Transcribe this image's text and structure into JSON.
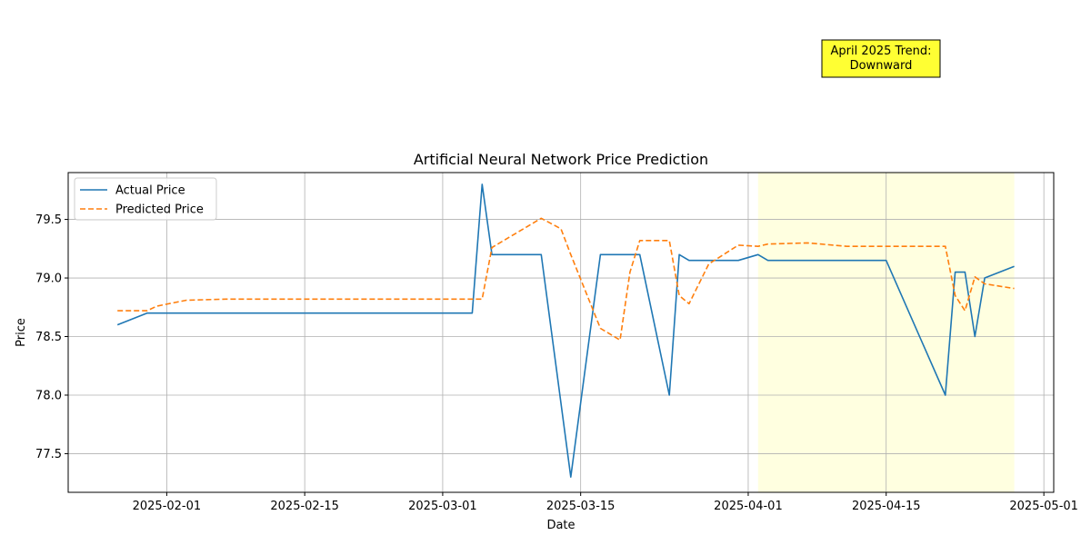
{
  "chart_data": {
    "type": "line",
    "title": "Artificial Neural Network Price Prediction",
    "xlabel": "Date",
    "ylabel": "Price",
    "xlim": [
      "2025-01-22",
      "2025-05-02"
    ],
    "ylim": [
      77.17,
      79.9
    ],
    "x_ticks": [
      "2025-02-01",
      "2025-02-15",
      "2025-03-01",
      "2025-03-15",
      "2025-04-01",
      "2025-04-15",
      "2025-05-01"
    ],
    "y_ticks": [
      77.5,
      78.0,
      78.5,
      79.0,
      79.5
    ],
    "grid": true,
    "legend_position": "upper-left",
    "highlight_span": {
      "start": "2025-04-02",
      "end": "2025-04-28",
      "color": "#ffffe0"
    },
    "annotation": {
      "lines": [
        "April 2025 Trend:",
        "Downward"
      ],
      "background": "#ffff33"
    },
    "series": [
      {
        "name": "Actual Price",
        "color": "#1f77b4",
        "style": "solid",
        "points": [
          [
            "2025-01-27",
            78.6
          ],
          [
            "2025-01-30",
            78.7
          ],
          [
            "2025-03-04",
            78.7
          ],
          [
            "2025-03-05",
            79.8
          ],
          [
            "2025-03-06",
            79.2
          ],
          [
            "2025-03-11",
            79.2
          ],
          [
            "2025-03-14",
            77.3
          ],
          [
            "2025-03-17",
            79.2
          ],
          [
            "2025-03-21",
            79.2
          ],
          [
            "2025-03-24",
            78.0
          ],
          [
            "2025-03-25",
            79.2
          ],
          [
            "2025-03-26",
            79.15
          ],
          [
            "2025-03-31",
            79.15
          ],
          [
            "2025-04-02",
            79.2
          ],
          [
            "2025-04-03",
            79.15
          ],
          [
            "2025-04-15",
            79.15
          ],
          [
            "2025-04-21",
            78.0
          ],
          [
            "2025-04-22",
            79.05
          ],
          [
            "2025-04-23",
            79.05
          ],
          [
            "2025-04-24",
            78.5
          ],
          [
            "2025-04-25",
            79.0
          ],
          [
            "2025-04-28",
            79.1
          ]
        ]
      },
      {
        "name": "Predicted Price",
        "color": "#ff7f0e",
        "style": "dashed",
        "points": [
          [
            "2025-01-27",
            78.72
          ],
          [
            "2025-01-30",
            78.72
          ],
          [
            "2025-01-31",
            78.76
          ],
          [
            "2025-02-03",
            78.81
          ],
          [
            "2025-02-07",
            78.82
          ],
          [
            "2025-03-04",
            78.82
          ],
          [
            "2025-03-05",
            78.82
          ],
          [
            "2025-03-06",
            79.26
          ],
          [
            "2025-03-11",
            79.51
          ],
          [
            "2025-03-13",
            79.42
          ],
          [
            "2025-03-14",
            79.2
          ],
          [
            "2025-03-17",
            78.57
          ],
          [
            "2025-03-19",
            78.47
          ],
          [
            "2025-03-20",
            79.05
          ],
          [
            "2025-03-21",
            79.32
          ],
          [
            "2025-03-24",
            79.32
          ],
          [
            "2025-03-25",
            78.85
          ],
          [
            "2025-03-26",
            78.78
          ],
          [
            "2025-03-28",
            79.12
          ],
          [
            "2025-03-31",
            79.28
          ],
          [
            "2025-04-02",
            79.27
          ],
          [
            "2025-04-03",
            79.29
          ],
          [
            "2025-04-07",
            79.3
          ],
          [
            "2025-04-11",
            79.27
          ],
          [
            "2025-04-21",
            79.27
          ],
          [
            "2025-04-22",
            78.85
          ],
          [
            "2025-04-23",
            78.72
          ],
          [
            "2025-04-24",
            79.01
          ],
          [
            "2025-04-25",
            78.95
          ],
          [
            "2025-04-28",
            78.91
          ]
        ]
      }
    ]
  }
}
